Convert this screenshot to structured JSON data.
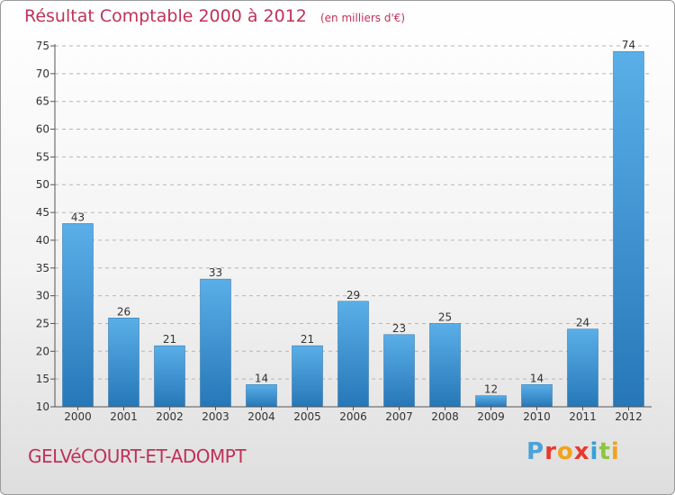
{
  "title": "Résultat Comptable 2000 à 2012",
  "unit_note": "(en milliers d'€)",
  "commune": "GELVéCOURT-ET-ADOMPT",
  "brand": {
    "letters": [
      "P",
      "r",
      "o",
      "x",
      "i",
      "t",
      "i"
    ],
    "colors": [
      "#4aa3d8",
      "#e63a2e",
      "#f2a31c",
      "#e63a2e",
      "#3aa0d8",
      "#8cc63f",
      "#f2a31c"
    ]
  },
  "colors": {
    "bar_top": "#5aafe8",
    "bar_bottom": "#2677b7",
    "grid": "#b5b5b5",
    "title": "#c0315a"
  },
  "chart_data": {
    "type": "bar",
    "title": "Résultat Comptable 2000 à 2012",
    "subtitle": "(en milliers d'€)",
    "xlabel": "",
    "ylabel": "",
    "categories": [
      "2000",
      "2001",
      "2002",
      "2003",
      "2004",
      "2005",
      "2006",
      "2007",
      "2008",
      "2009",
      "2010",
      "2011",
      "2012"
    ],
    "values": [
      43,
      26,
      21,
      33,
      14,
      21,
      29,
      23,
      25,
      12,
      14,
      24,
      74
    ],
    "ylim": [
      10,
      75
    ],
    "yticks": [
      10,
      15,
      20,
      25,
      30,
      35,
      40,
      45,
      50,
      55,
      60,
      65,
      70,
      75
    ],
    "grid": "horizontal-dashed"
  }
}
